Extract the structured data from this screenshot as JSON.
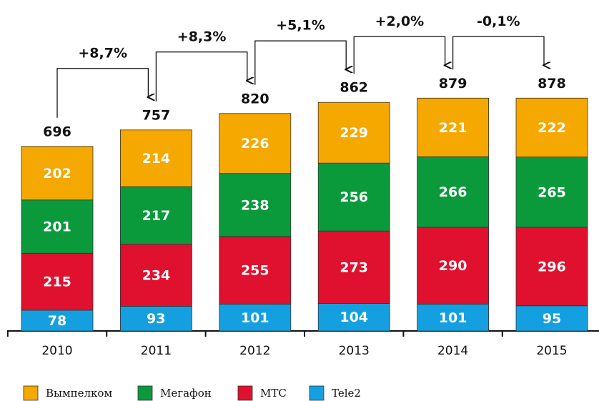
{
  "chart_data": {
    "type": "stacked_bar",
    "categories": [
      "2010",
      "2011",
      "2012",
      "2013",
      "2014",
      "2015"
    ],
    "series": [
      {
        "name": "Tele2",
        "color": "#14a0e0",
        "values": [
          78,
          93,
          101,
          104,
          101,
          95
        ]
      },
      {
        "name": "МТС",
        "color": "#e0102f",
        "values": [
          215,
          234,
          255,
          273,
          290,
          296
        ]
      },
      {
        "name": "Мегафон",
        "color": "#0a9a3c",
        "values": [
          201,
          217,
          238,
          256,
          266,
          265
        ]
      },
      {
        "name": "Вымпелком",
        "color": "#f5a800",
        "values": [
          202,
          214,
          226,
          229,
          221,
          222
        ]
      }
    ],
    "totals": [
      696,
      757,
      820,
      862,
      879,
      878
    ],
    "annotations": [
      "+8,7%",
      "+8,3%",
      "+5,1%",
      "+2,0%",
      "-0,1%"
    ],
    "legend": [
      "Вымпелком",
      "Мегафон",
      "МТС",
      "Tele2"
    ]
  }
}
